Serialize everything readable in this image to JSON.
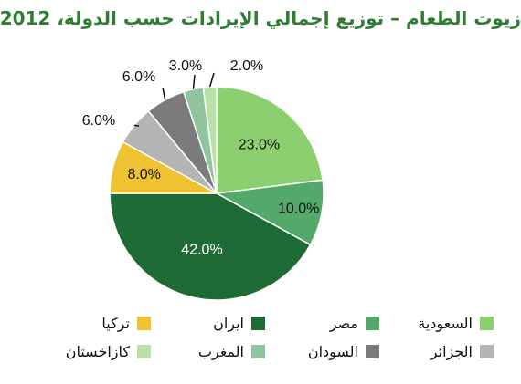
{
  "chart_data": {
    "type": "pie",
    "title": "زيوت الطعام – توزيع إجمالي الإيرادات حسب الدولة، 2012",
    "slices": [
      {
        "name": "السعودية",
        "value": 23.0,
        "label": "23.0%",
        "color": "#8ccf6e"
      },
      {
        "name": "مصر",
        "value": 10.0,
        "label": "10.0%",
        "color": "#52a96a"
      },
      {
        "name": "ايران",
        "value": 42.0,
        "label": "42.0%",
        "color": "#1e6b36"
      },
      {
        "name": "تركيا",
        "value": 8.0,
        "label": "8.0%",
        "color": "#efc232"
      },
      {
        "name": "الجزائر",
        "value": 6.0,
        "label": "6.0%",
        "color": "#b4b4b4"
      },
      {
        "name": "السودان",
        "value": 6.0,
        "label": "6.0%",
        "color": "#7b7b7b"
      },
      {
        "name": "المغرب",
        "value": 3.0,
        "label": "3.0%",
        "color": "#8fc49d"
      },
      {
        "name": "كازاخستان",
        "value": 2.0,
        "label": "2.0%",
        "color": "#b9e0a6"
      }
    ],
    "legend_position": "bottom",
    "legend_order": [
      "السعودية",
      "مصر",
      "ايران",
      "تركيا",
      "الجزائر",
      "السودان",
      "المغرب",
      "كازاخستان"
    ]
  }
}
